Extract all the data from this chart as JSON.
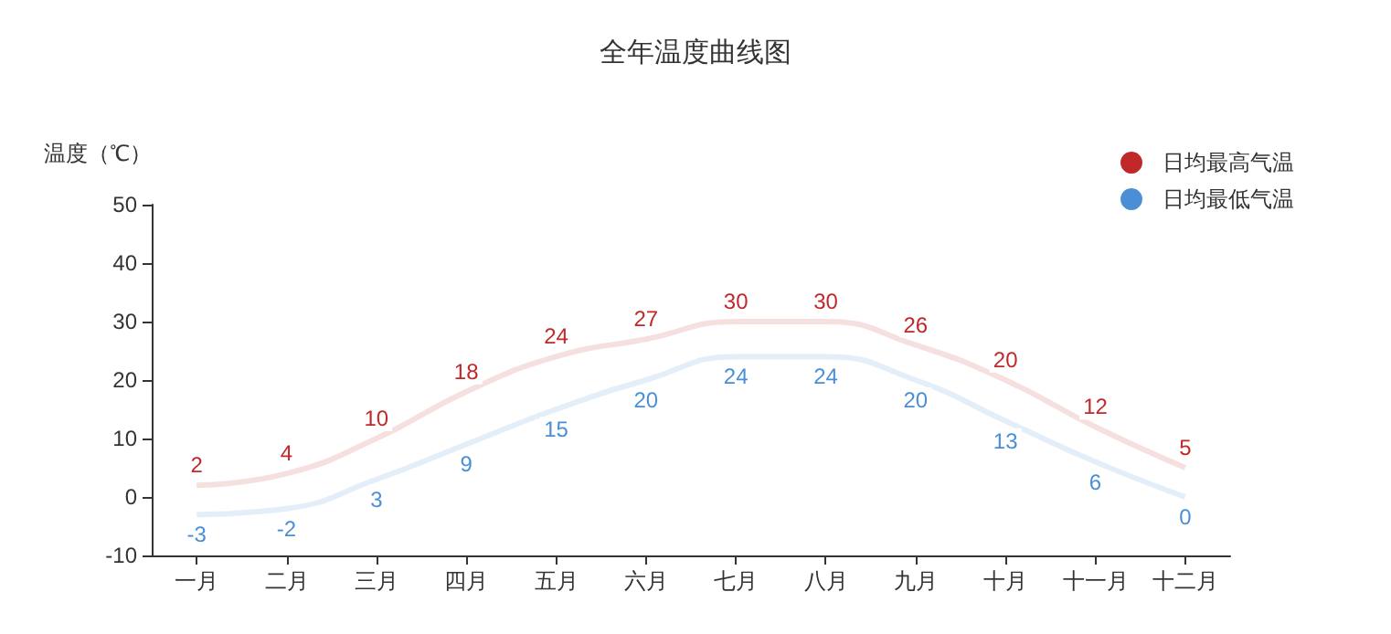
{
  "chart_data": {
    "type": "line",
    "title": "全年温度曲线图",
    "ylabel": "温度（℃）",
    "categories": [
      "一月",
      "二月",
      "三月",
      "四月",
      "五月",
      "六月",
      "七月",
      "八月",
      "九月",
      "十月",
      "十一月",
      "十二月"
    ],
    "series": [
      {
        "name": "日均最高气温",
        "color": "#c0282a",
        "values": [
          2,
          4,
          10,
          18,
          24,
          27,
          30,
          30,
          26,
          20,
          12,
          5
        ]
      },
      {
        "name": "日均最低气温",
        "color": "#4a8fd6",
        "values": [
          -3,
          -2,
          3,
          9,
          15,
          20,
          24,
          24,
          20,
          13,
          6,
          0
        ]
      }
    ],
    "ylim": [
      -10,
      50
    ],
    "yticks": [
      -10,
      0,
      10,
      20,
      30,
      40,
      50
    ],
    "grid": false,
    "legend": "top right",
    "marker": "none",
    "data_labels": true
  }
}
